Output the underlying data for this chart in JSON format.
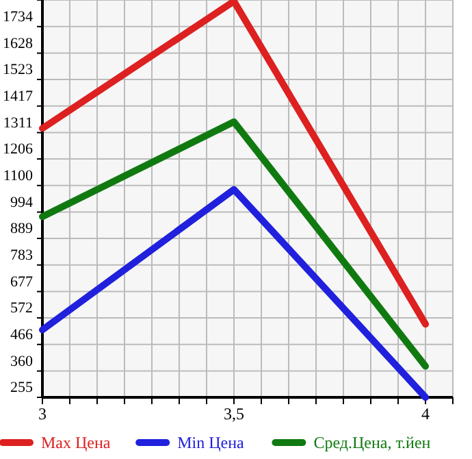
{
  "chart_data": {
    "type": "line",
    "x": [
      3,
      3.5,
      4
    ],
    "series": [
      {
        "name": "Max Цена",
        "color": "#dd2020",
        "values": [
          1328,
          1835,
          547
        ]
      },
      {
        "name": "Min Цена",
        "color": "#2020dd",
        "values": [
          524,
          1084,
          255
        ]
      },
      {
        "name": "Сред.Цена, т.йен",
        "color": "#107a10",
        "values": [
          976,
          1354,
          379
        ]
      }
    ],
    "xlim": [
      3,
      4.0714
    ],
    "xticks": [
      3,
      {
        "value": 3.0714,
        "label": null
      },
      {
        "value": 3.1429,
        "label": null
      },
      {
        "value": 3.2143,
        "label": null
      },
      {
        "value": 3.2857,
        "label": null
      },
      {
        "value": 3.3571,
        "label": null
      },
      {
        "value": 3.4286,
        "label": null
      },
      {
        "value": 3.5,
        "label": "3,5"
      },
      {
        "value": 3.5714,
        "label": null
      },
      {
        "value": 3.6429,
        "label": null
      },
      {
        "value": 3.7143,
        "label": null
      },
      {
        "value": 3.7857,
        "label": null
      },
      {
        "value": 3.8571,
        "label": null
      },
      {
        "value": 3.9286,
        "label": null
      },
      4,
      {
        "value": 4.0714,
        "label": null
      }
    ],
    "ylim": [
      255,
      1840
    ],
    "yticks": [
      255,
      360,
      466,
      572,
      677,
      783,
      889,
      994,
      1100,
      1206,
      1311,
      1417,
      1523,
      1628,
      1734,
      {
        "value": 1840,
        "label": null
      }
    ],
    "grid": true,
    "legend": "bottom",
    "marker": "none",
    "line_style": "solid"
  }
}
